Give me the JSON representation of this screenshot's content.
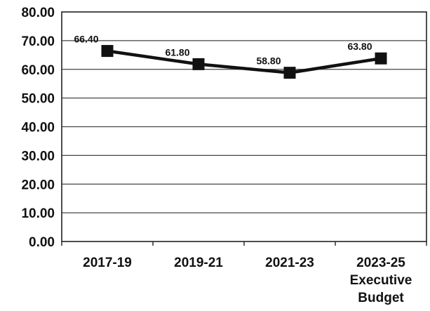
{
  "chart_data": {
    "type": "line",
    "title": "",
    "xlabel": "",
    "ylabel": "",
    "categories": [
      [
        "2017-19"
      ],
      [
        "2019-21"
      ],
      [
        "2021-23"
      ],
      [
        "2023-25",
        "Executive",
        "Budget"
      ]
    ],
    "series": [
      {
        "values": [
          66.4,
          61.8,
          58.8,
          63.8
        ],
        "labels": [
          "66.40",
          "61.80",
          "58.80",
          "63.80"
        ],
        "color": "#111111",
        "marker": "square"
      }
    ],
    "ylim": [
      0,
      80
    ],
    "yticks": [
      "0.00",
      "10.00",
      "20.00",
      "30.00",
      "40.00",
      "50.00",
      "60.00",
      "70.00",
      "80.00"
    ],
    "grid": true,
    "legend": "none"
  }
}
